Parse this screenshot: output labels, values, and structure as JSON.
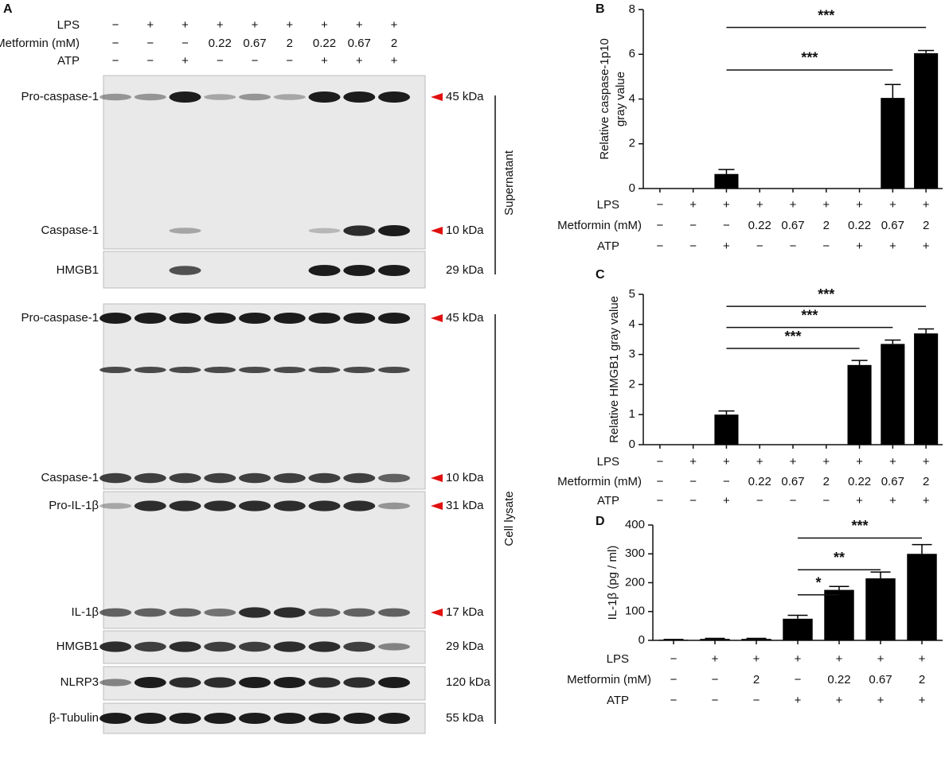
{
  "panel_a": {
    "label": "A",
    "conditions": [
      {
        "label": "LPS",
        "values": [
          "−",
          "+",
          "+",
          "+",
          "+",
          "+",
          "+",
          "+",
          "+"
        ]
      },
      {
        "label": "Metformin (mM)",
        "values": [
          "−",
          "−",
          "−",
          "0.22",
          "0.67",
          "2",
          "0.22",
          "0.67",
          "2"
        ]
      },
      {
        "label": "ATP",
        "values": [
          "−",
          "−",
          "+",
          "−",
          "−",
          "−",
          "+",
          "+",
          "+"
        ]
      }
    ],
    "left_labels": [
      "Pro-caspase-1",
      "Caspase-1",
      "HMGB1",
      "Pro-caspase-1",
      "Caspase-1",
      "Pro-IL-1β",
      "IL-1β",
      "HMGB1",
      "NLRP3",
      "β-Tubulin"
    ],
    "right_labels": [
      "45 kDa",
      "10 kDa",
      "29 kDa",
      "45 kDa",
      "10 kDa",
      "31 kDa",
      "17 kDa",
      "29 kDa",
      "120 kDa",
      "55 kDa"
    ],
    "groups": [
      "Supernatant",
      "Cell lysate"
    ]
  },
  "chart_data": [
    {
      "type": "bar",
      "label": "B",
      "ylabel": [
        "Relative caspase-1p10",
        "gray value"
      ],
      "ylim": [
        0,
        8
      ],
      "yticks": [
        0,
        2,
        4,
        6,
        8
      ],
      "color": "#000000",
      "values": [
        0,
        0,
        0.65,
        0,
        0,
        0,
        0,
        4.05,
        6.05
      ],
      "errors": [
        null,
        null,
        0.2,
        null,
        null,
        null,
        null,
        0.6,
        0.12
      ],
      "conditions": [
        {
          "label": "LPS",
          "values": [
            "−",
            "+",
            "+",
            "+",
            "+",
            "+",
            "+",
            "+",
            "+"
          ]
        },
        {
          "label": "Metformin (mM)",
          "values": [
            "−",
            "−",
            "−",
            "0.22",
            "0.67",
            "2",
            "0.22",
            "0.67",
            "2"
          ]
        },
        {
          "label": "ATP",
          "values": [
            "−",
            "−",
            "+",
            "−",
            "−",
            "−",
            "+",
            "+",
            "+"
          ]
        }
      ],
      "significance": [
        {
          "label": "***",
          "from": 2,
          "to": 8
        },
        {
          "label": "***",
          "from": 2,
          "to": 7
        }
      ]
    },
    {
      "type": "bar",
      "label": "C",
      "ylabel": [
        "Relative HMGB1 gray value"
      ],
      "ylim": [
        0,
        5
      ],
      "yticks": [
        0,
        1,
        2,
        3,
        4,
        5
      ],
      "color": "#000000",
      "values": [
        0,
        0,
        1.0,
        0,
        0,
        0,
        2.65,
        3.35,
        3.7
      ],
      "errors": [
        null,
        null,
        0.12,
        null,
        null,
        null,
        0.15,
        0.13,
        0.15
      ],
      "conditions": [
        {
          "label": "LPS",
          "values": [
            "−",
            "+",
            "+",
            "+",
            "+",
            "+",
            "+",
            "+",
            "+"
          ]
        },
        {
          "label": "Metformin (mM)",
          "values": [
            "−",
            "−",
            "−",
            "0.22",
            "0.67",
            "2",
            "0.22",
            "0.67",
            "2"
          ]
        },
        {
          "label": "ATP",
          "values": [
            "−",
            "−",
            "+",
            "−",
            "−",
            "−",
            "+",
            "+",
            "+"
          ]
        }
      ],
      "significance": [
        {
          "label": "***",
          "from": 2,
          "to": 8
        },
        {
          "label": "***",
          "from": 2,
          "to": 7
        },
        {
          "label": "***",
          "from": 2,
          "to": 6
        }
      ]
    },
    {
      "type": "bar",
      "label": "D",
      "ylabel": [
        "IL-1β (pg / ml)"
      ],
      "ylim": [
        0,
        400
      ],
      "yticks": [
        0,
        100,
        200,
        300,
        400
      ],
      "color": "#000000",
      "values": [
        2,
        5,
        5,
        75,
        175,
        215,
        300
      ],
      "errors": [
        1,
        2,
        2,
        12,
        12,
        22,
        32
      ],
      "conditions": [
        {
          "label": "LPS",
          "values": [
            "−",
            "+",
            "+",
            "+",
            "+",
            "+",
            "+"
          ]
        },
        {
          "label": "Metformin (mM)",
          "values": [
            "−",
            "−",
            "2",
            "−",
            "0.22",
            "0.67",
            "2"
          ]
        },
        {
          "label": "ATP",
          "values": [
            "−",
            "−",
            "−",
            "+",
            "+",
            "+",
            "+"
          ]
        }
      ],
      "significance": [
        {
          "label": "***",
          "from": 3,
          "to": 6
        },
        {
          "label": "**",
          "from": 3,
          "to": 5
        },
        {
          "label": "*",
          "from": 3,
          "to": 4
        }
      ]
    }
  ]
}
